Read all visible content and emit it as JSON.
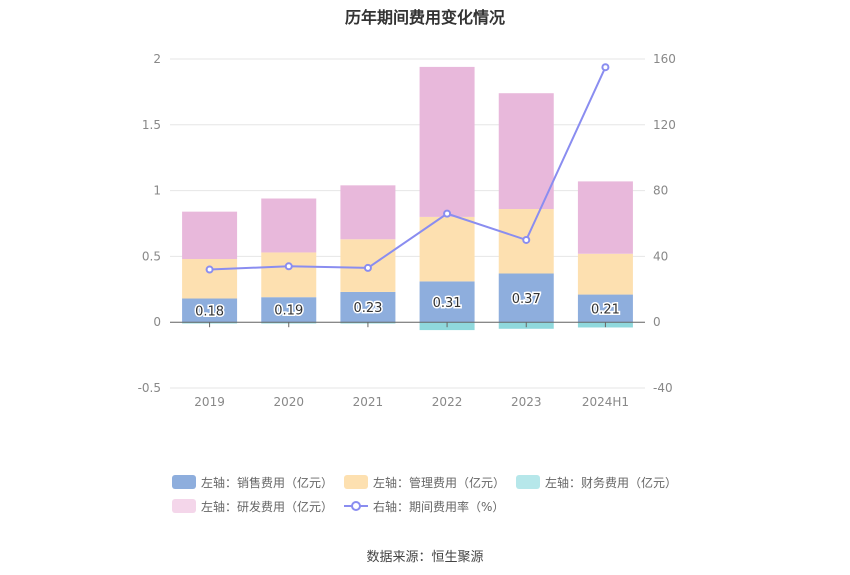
{
  "title": "历年期间费用变化情况",
  "source_label": "数据来源：恒生聚源",
  "colors": {
    "sales": "#8eaedd",
    "admin": "#fde0b0",
    "finance": "#8fd8dc",
    "rnd": "#e8b8db",
    "rate": "#8a8df0",
    "finance_legend": "#b6e7ea",
    "rnd_legend": "#f4d6ea"
  },
  "chart_data": {
    "type": "bar",
    "stacked": true,
    "categories": [
      "2019",
      "2020",
      "2021",
      "2022",
      "2023",
      "2024H1"
    ],
    "series": [
      {
        "name": "左轴：销售费用（亿元）",
        "key": "sales",
        "axis": "left",
        "values": [
          0.18,
          0.19,
          0.23,
          0.31,
          0.37,
          0.21
        ]
      },
      {
        "name": "左轴：管理费用（亿元）",
        "key": "admin",
        "axis": "left",
        "values": [
          0.3,
          0.34,
          0.4,
          0.49,
          0.49,
          0.31
        ]
      },
      {
        "name": "左轴：财务费用（亿元）",
        "key": "finance",
        "axis": "left",
        "values": [
          -0.01,
          -0.01,
          -0.01,
          -0.06,
          -0.05,
          -0.04
        ]
      },
      {
        "name": "左轴：研发费用（亿元）",
        "key": "rnd",
        "axis": "left",
        "values": [
          0.36,
          0.41,
          0.41,
          1.14,
          0.88,
          0.55
        ]
      },
      {
        "name": "右轴：期间费用率（%）",
        "key": "rate",
        "axis": "right",
        "type": "line",
        "values": [
          32,
          34,
          33,
          66,
          50,
          155
        ]
      }
    ],
    "data_labels": [
      "0.18",
      "0.19",
      "0.23",
      "0.31",
      "0.37",
      "0.21"
    ],
    "left_axis": {
      "ylim": [
        -0.5,
        2
      ],
      "ticks": [
        "-0.5",
        "0",
        "0.5",
        "1",
        "1.5",
        "2"
      ]
    },
    "right_axis": {
      "ylim": [
        -40,
        160
      ],
      "ticks": [
        "-40",
        "0",
        "40",
        "80",
        "120",
        "160"
      ]
    },
    "grid": true,
    "legend_position": "bottom"
  }
}
